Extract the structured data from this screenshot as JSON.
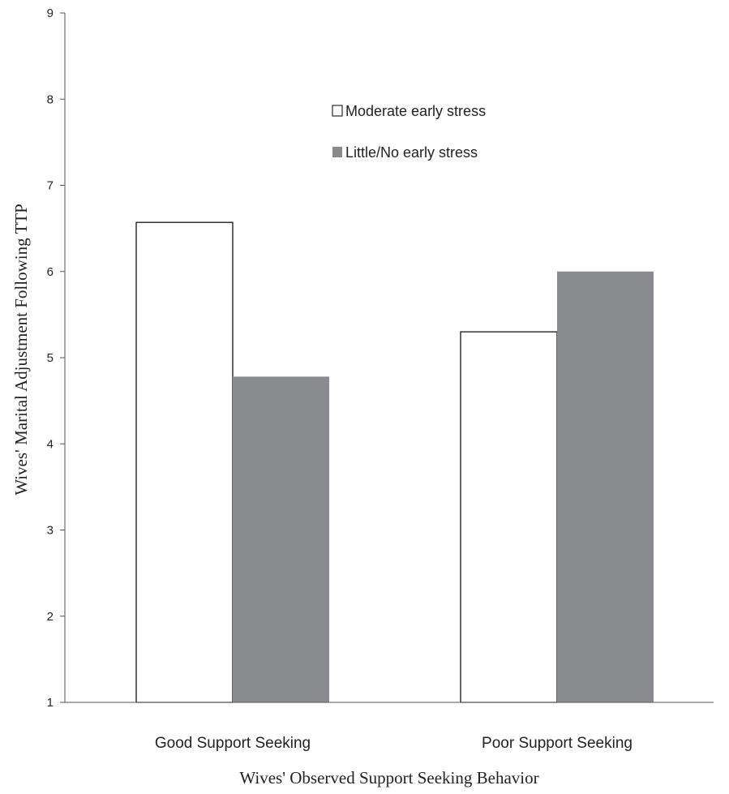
{
  "chart_data": {
    "type": "bar",
    "categories": [
      "Good Support Seeking",
      "Poor Support Seeking"
    ],
    "series": [
      {
        "name": "Moderate early stress",
        "values": [
          6.57,
          5.3
        ],
        "fill": "#ffffff",
        "stroke": "#000000"
      },
      {
        "name": "Little/No early stress",
        "values": [
          4.78,
          6.0
        ],
        "fill": "#8a8b8f",
        "stroke": "none"
      }
    ],
    "xlabel": "Wives' Observed Support Seeking Behavior",
    "ylabel": "Wives' Marital Adjustment Following TTP",
    "ylim": [
      1,
      9
    ],
    "yticks": [
      "1",
      "2",
      "3",
      "4",
      "5",
      "6",
      "7",
      "8",
      "9"
    ],
    "legend_position": "top-center",
    "grid": false
  }
}
